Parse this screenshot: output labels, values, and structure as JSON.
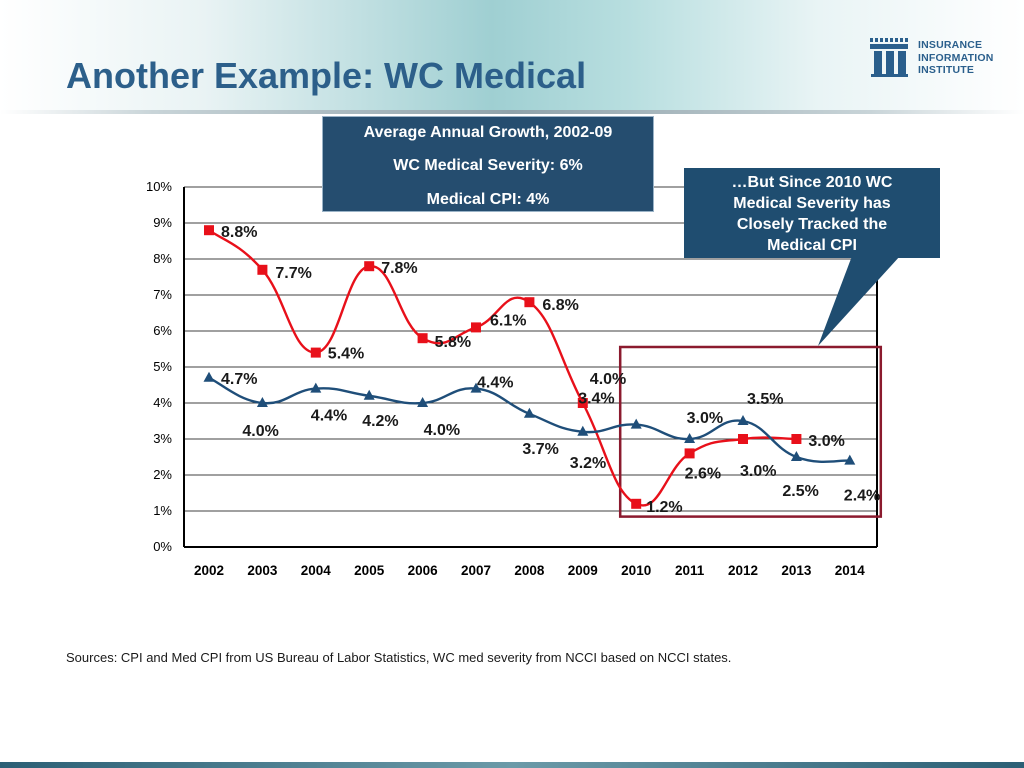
{
  "slide": {
    "title": "Another Example: WC Medical",
    "sources": "Sources:  CPI and Med CPI from US Bureau of Labor Statistics, WC med severity from NCCI based on NCCI states."
  },
  "logo": {
    "lines": [
      "INSURANCE",
      "INFORMATION",
      "INSTITUTE"
    ],
    "color": "#2a5f8c"
  },
  "growth_box": {
    "lines": [
      "Average Annual Growth, 2002-09",
      "WC Medical Severity: 6%",
      "Medical CPI: 4%"
    ]
  },
  "callout": {
    "lines": [
      "…But Since 2010 WC",
      "Medical Severity has",
      "Closely Tracked the",
      "Medical CPI"
    ]
  },
  "colors": {
    "severity": "#e8101a",
    "cpi": "#1f4e79",
    "highlight": "#8b1a2e",
    "title": "#2c5f8a"
  },
  "chart_data": {
    "type": "line",
    "title": "",
    "xlabel": "",
    "ylabel": "",
    "categories": [
      "2002",
      "2003",
      "2004",
      "2005",
      "2006",
      "2007",
      "2008",
      "2009",
      "2010",
      "2011",
      "2012",
      "2013",
      "2014"
    ],
    "y_ticks": [
      "0%",
      "1%",
      "2%",
      "3%",
      "4%",
      "5%",
      "6%",
      "7%",
      "8%",
      "9%",
      "10%"
    ],
    "ylim": [
      0,
      10
    ],
    "series": [
      {
        "name": "WC Medical Severity",
        "marker": "square",
        "x": [
          "2002",
          "2003",
          "2004",
          "2005",
          "2006",
          "2007",
          "2008",
          "2009",
          "2010",
          "2011",
          "2012",
          "2013"
        ],
        "values": [
          8.8,
          7.7,
          5.4,
          7.8,
          5.8,
          6.1,
          6.8,
          4.0,
          1.2,
          2.6,
          3.0,
          3.0
        ],
        "labels": [
          "8.8%",
          "7.7%",
          "5.4%",
          "7.8%",
          "5.8%",
          "6.1%",
          "6.8%",
          "4.0%",
          "1.2%",
          "2.6%",
          "3.0%",
          "3.0%"
        ]
      },
      {
        "name": "Medical CPI",
        "marker": "triangle",
        "x": [
          "2002",
          "2003",
          "2004",
          "2005",
          "2006",
          "2007",
          "2008",
          "2009",
          "2010",
          "2011",
          "2012",
          "2013",
          "2014"
        ],
        "values": [
          4.7,
          4.0,
          4.4,
          4.2,
          4.0,
          4.4,
          3.7,
          3.2,
          3.4,
          3.0,
          3.5,
          2.5,
          2.4
        ],
        "labels": [
          "4.7%",
          "4.0%",
          "4.4%",
          "4.2%",
          "4.0%",
          "4.4%",
          "3.7%",
          "3.2%",
          "3.4%",
          "3.0%",
          "3.5%",
          "2.5%",
          "2.4%"
        ]
      }
    ],
    "highlight_range": [
      "2010",
      "2014"
    ]
  }
}
